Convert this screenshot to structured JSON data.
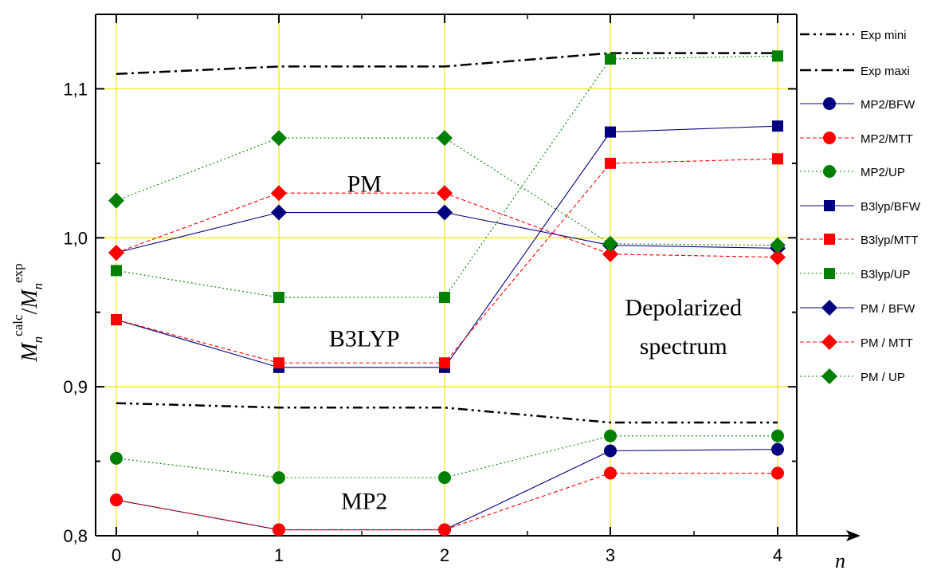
{
  "chart_data": {
    "type": "line",
    "x": [
      0,
      1,
      2,
      3,
      4
    ],
    "xticks": [
      "0",
      "1",
      "2",
      "3",
      "4"
    ],
    "xlabel": "n",
    "ylabel_main": "M",
    "ylabel_sub": "n",
    "ylabel_sup_calc": "calc",
    "ylabel_sup_exp": "exp",
    "ylim": [
      0.8,
      1.15
    ],
    "yticks": [
      0.8,
      0.9,
      1.0,
      1.1
    ],
    "ytick_labels": [
      "0,8",
      "0,9",
      "1,0",
      "1,1"
    ],
    "grid": true,
    "legend_position": "right",
    "annotations": [
      {
        "text": "PM",
        "x": 1.5,
        "y": 1.031
      },
      {
        "text": "B3LYP",
        "x": 1.5,
        "y": 0.927
      },
      {
        "text": "MP2",
        "x": 1.5,
        "y": 0.818
      },
      {
        "text": "Depolarized",
        "x": 3.43,
        "y": 0.948
      },
      {
        "text": "spectrum",
        "x": 3.43,
        "y": 0.922
      }
    ],
    "series": [
      {
        "name": "Exp mini",
        "values": [
          0.889,
          0.886,
          0.886,
          0.876,
          0.876
        ],
        "color": "#000000",
        "dash": "12,5,3,5,3,5",
        "marker": "none"
      },
      {
        "name": "Exp maxi",
        "values": [
          1.11,
          1.115,
          1.115,
          1.124,
          1.124
        ],
        "color": "#000000",
        "dash": "14,5,3,5",
        "marker": "none"
      },
      {
        "name": "MP2/BFW",
        "values": [
          0.824,
          0.804,
          0.804,
          0.857,
          0.858
        ],
        "color": "#000080",
        "dash": "none",
        "marker": "circle"
      },
      {
        "name": "MP2/MTT",
        "values": [
          0.824,
          0.804,
          0.804,
          0.842,
          0.842
        ],
        "color": "#ff0000",
        "dash": "5,3",
        "marker": "circle"
      },
      {
        "name": "MP2/UP",
        "values": [
          0.852,
          0.839,
          0.839,
          0.867,
          0.867
        ],
        "color": "#008000",
        "dash": "2,3",
        "marker": "circle"
      },
      {
        "name": "B3lyp/BFW",
        "values": [
          0.945,
          0.913,
          0.913,
          1.071,
          1.075
        ],
        "color": "#000080",
        "dash": "none",
        "marker": "square"
      },
      {
        "name": "B3lyp/MTT",
        "values": [
          0.945,
          0.916,
          0.916,
          1.05,
          1.053
        ],
        "color": "#ff0000",
        "dash": "5,3",
        "marker": "square"
      },
      {
        "name": "B3lyp/UP",
        "values": [
          0.978,
          0.96,
          0.96,
          1.12,
          1.122
        ],
        "color": "#008000",
        "dash": "2,3",
        "marker": "square"
      },
      {
        "name": "PM / BFW",
        "values": [
          0.99,
          1.017,
          1.017,
          0.995,
          0.993
        ],
        "color": "#000080",
        "dash": "none",
        "marker": "diamond"
      },
      {
        "name": "PM / MTT",
        "values": [
          0.99,
          1.03,
          1.03,
          0.989,
          0.987
        ],
        "color": "#ff0000",
        "dash": "5,3",
        "marker": "diamond"
      },
      {
        "name": "PM / UP",
        "values": [
          1.025,
          1.067,
          1.067,
          0.996,
          0.995
        ],
        "color": "#008000",
        "dash": "2,3",
        "marker": "diamond"
      }
    ]
  }
}
